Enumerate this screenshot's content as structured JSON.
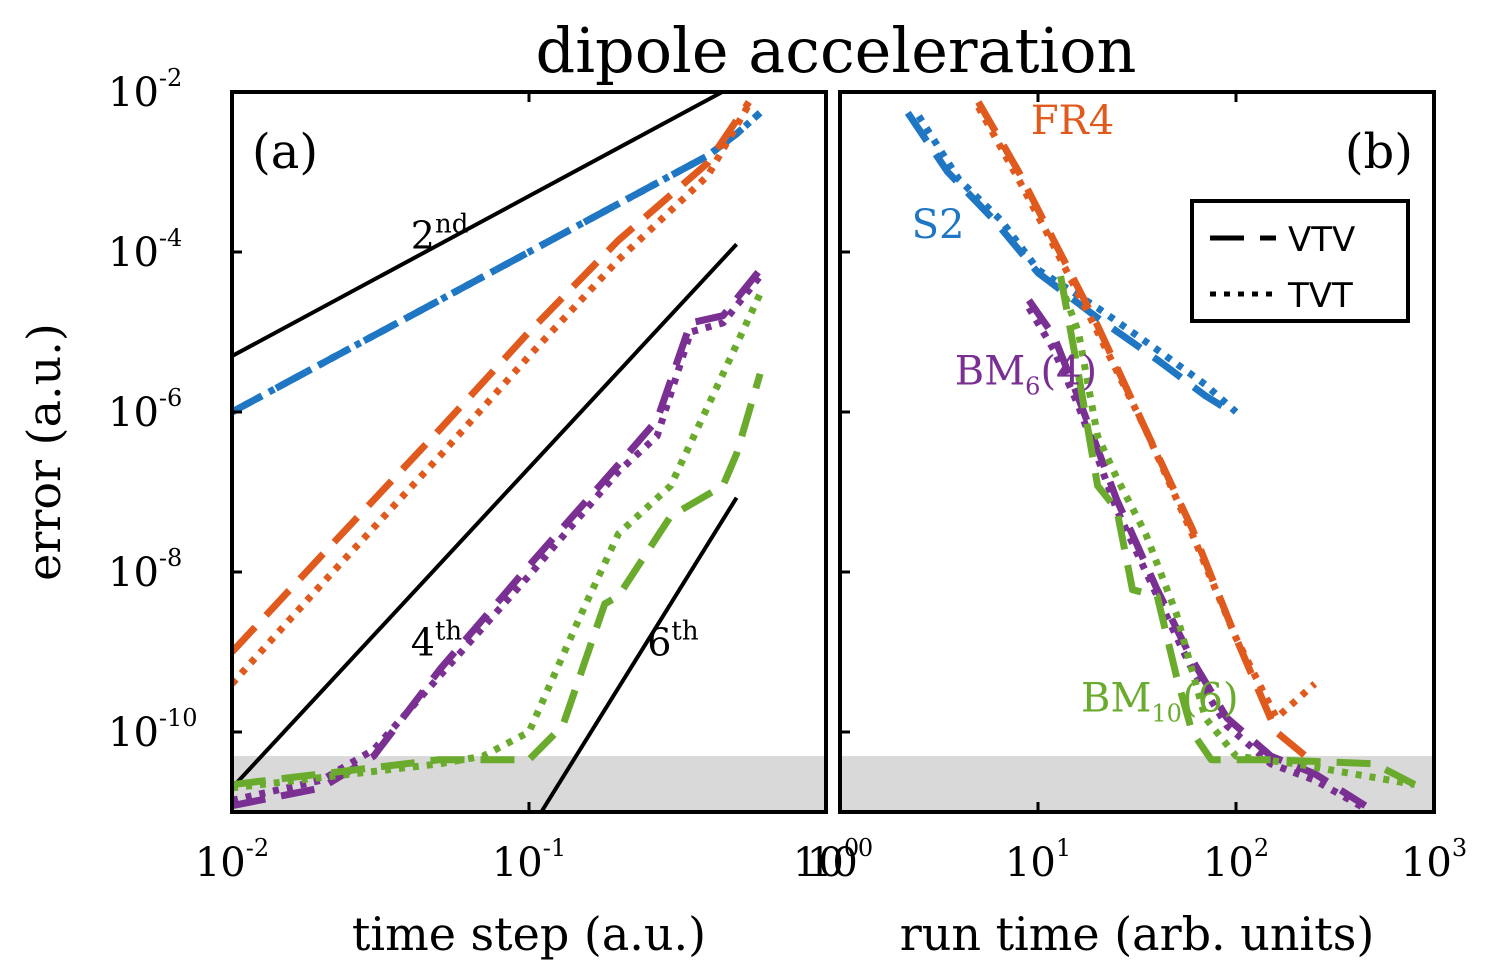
{
  "figure_title": "dipole acceleration",
  "colors": {
    "S2": "#1f77c4",
    "FR4": "#e05a1e",
    "BM6(4)": "#7a2f93",
    "BM10(6)": "#6aab2e",
    "reference": "#000000",
    "shade": "#d9d9d9"
  },
  "legend": {
    "placement": "top-right of panel (b)",
    "entries": [
      {
        "label": "VTV",
        "style": "dashed"
      },
      {
        "label": "TVT",
        "style": "dotted"
      }
    ]
  },
  "chart_data": [
    {
      "type": "line",
      "panel_label": "(a)",
      "xlabel": "time step (a.u.)",
      "ylabel": "error (a.u.)",
      "x_scale": "log",
      "y_scale": "log",
      "xlim": [
        0.01,
        1
      ],
      "ylim": [
        1e-11,
        0.01
      ],
      "x_ticks": [
        {
          "base": "10",
          "exp": "-2"
        },
        {
          "base": "10",
          "exp": "-1"
        },
        {
          "base": "10",
          "exp": "0"
        }
      ],
      "y_ticks": [
        {
          "base": "10",
          "exp": "-2"
        },
        {
          "base": "10",
          "exp": "-4"
        },
        {
          "base": "10",
          "exp": "-6"
        },
        {
          "base": "10",
          "exp": "-8"
        },
        {
          "base": "10",
          "exp": "-10"
        }
      ],
      "grid": false,
      "shaded_band": [
        1e-11,
        5e-11
      ],
      "reference_lines": [
        {
          "order": "2",
          "label_base": "2",
          "label_sup": "nd",
          "x": [
            0.01,
            0.5
          ],
          "y": [
            5e-06,
            0.0125
          ],
          "label_at": [
            0.04,
            0.00011
          ]
        },
        {
          "order": "4",
          "label_base": "4",
          "label_sup": "th",
          "x": [
            0.01,
            0.5
          ],
          "y": [
            2e-11,
            0.000125
          ],
          "label_at": [
            0.04,
            9e-10
          ]
        },
        {
          "order": "6",
          "label_base": "6",
          "label_sup": "th",
          "x": [
            0.11,
            0.5
          ],
          "y": [
            1e-11,
            8.5e-08
          ],
          "label_at": [
            0.25,
            9e-10
          ]
        }
      ],
      "series": [
        {
          "method": "S2",
          "style": "dashed",
          "x": [
            0.01,
            0.02,
            0.05,
            0.1,
            0.2,
            0.4,
            0.5,
            0.6
          ],
          "y": [
            1e-06,
            4e-06,
            2.5e-05,
            0.0001,
            0.0004,
            0.0016,
            0.003,
            0.0055
          ]
        },
        {
          "method": "S2",
          "style": "dotted",
          "x": [
            0.01,
            0.02,
            0.05,
            0.1,
            0.2,
            0.4,
            0.5,
            0.6
          ],
          "y": [
            1e-06,
            4e-06,
            2.5e-05,
            0.0001,
            0.0004,
            0.0016,
            0.003,
            0.0055
          ]
        },
        {
          "method": "FR4",
          "style": "dashed",
          "x": [
            0.01,
            0.02,
            0.05,
            0.1,
            0.2,
            0.4,
            0.55
          ],
          "y": [
            1e-09,
            1.6e-08,
            6e-07,
            1e-05,
            0.00014,
            0.0013,
            0.0075
          ]
        },
        {
          "method": "FR4",
          "style": "dotted",
          "x": [
            0.01,
            0.02,
            0.05,
            0.1,
            0.2,
            0.4,
            0.55
          ],
          "y": [
            4e-10,
            7e-09,
            2.8e-07,
            5e-06,
            8e-05,
            0.0009,
            0.007
          ]
        },
        {
          "method": "BM6(4)",
          "style": "dashed",
          "x": [
            0.01,
            0.02,
            0.03,
            0.05,
            0.1,
            0.2,
            0.27,
            0.35,
            0.45,
            0.6
          ],
          "y": [
            1.2e-11,
            2e-11,
            5e-11,
            6e-10,
            1.2e-08,
            2.2e-07,
            8e-07,
            1.3e-05,
            1.6e-05,
            6e-05
          ]
        },
        {
          "method": "BM6(4)",
          "style": "dotted",
          "x": [
            0.01,
            0.02,
            0.03,
            0.05,
            0.1,
            0.2,
            0.27,
            0.35,
            0.45,
            0.6
          ],
          "y": [
            1.4e-11,
            2.5e-11,
            6e-11,
            5e-10,
            9e-09,
            1.8e-07,
            5e-07,
            1e-05,
            1.3e-05,
            5e-05
          ]
        },
        {
          "method": "BM10(6)",
          "style": "dashed",
          "x": [
            0.01,
            0.05,
            0.1,
            0.13,
            0.18,
            0.2,
            0.3,
            0.45,
            0.5,
            0.6
          ],
          "y": [
            2.2e-11,
            4.5e-11,
            4.5e-11,
            1.2e-10,
            4e-09,
            5e-09,
            5e-08,
            1.2e-07,
            3e-07,
            3e-06
          ]
        },
        {
          "method": "BM10(6)",
          "style": "dotted",
          "x": [
            0.01,
            0.05,
            0.07,
            0.1,
            0.15,
            0.2,
            0.3,
            0.45,
            0.6
          ],
          "y": [
            2e-11,
            4e-11,
            5e-11,
            1e-10,
            3e-09,
            3e-08,
            1.2e-07,
            3e-06,
            3e-05
          ]
        }
      ]
    },
    {
      "type": "line",
      "panel_label": "(b)",
      "xlabel": "run time (arb. units)",
      "ylabel": "",
      "x_scale": "log",
      "y_scale": "log",
      "xlim": [
        1,
        1000
      ],
      "ylim": [
        1e-11,
        0.01
      ],
      "x_ticks": [
        {
          "base": "10",
          "exp": "0"
        },
        {
          "base": "10",
          "exp": "1"
        },
        {
          "base": "10",
          "exp": "2"
        },
        {
          "base": "10",
          "exp": "3"
        }
      ],
      "grid": false,
      "shaded_band": [
        1e-11,
        5e-11
      ],
      "method_labels": [
        {
          "method": "S2",
          "base": "S2",
          "sub": "",
          "tail": "",
          "at": [
            2.3,
            0.00015
          ]
        },
        {
          "method": "FR4",
          "base": "FR4",
          "sub": "",
          "tail": "",
          "at": [
            9.2,
            0.003
          ]
        },
        {
          "method": "BM6(4)",
          "base": "BM",
          "sub": "6",
          "tail": "(4)",
          "at": [
            3.8,
            2.2e-06
          ]
        },
        {
          "method": "BM10(6)",
          "base": "BM",
          "sub": "10",
          "tail": "(6)",
          "at": [
            16.5,
            1.8e-10
          ]
        }
      ],
      "series": [
        {
          "method": "S2",
          "style": "dashed",
          "x": [
            2.2,
            3.5,
            6,
            10,
            20,
            40,
            70,
            95
          ],
          "y": [
            0.0055,
            0.001,
            0.00025,
            5.5e-05,
            1.5e-05,
            4.5e-06,
            1.6e-06,
            1e-06
          ]
        },
        {
          "method": "S2",
          "style": "dotted",
          "x": [
            2.5,
            4,
            6.5,
            10,
            20,
            40,
            70,
            100
          ],
          "y": [
            0.005,
            0.0008,
            0.00025,
            6e-05,
            2e-05,
            6e-06,
            2.2e-06,
            1e-06
          ]
        },
        {
          "method": "FR4",
          "style": "dashed",
          "x": [
            5,
            8,
            12,
            20,
            35,
            60,
            100,
            160,
            250
          ],
          "y": [
            0.0075,
            0.001,
            0.00014,
            1.2e-05,
            6e-07,
            3.5e-08,
            1.5e-09,
            1e-10,
            4e-11
          ]
        },
        {
          "method": "FR4",
          "style": "dotted",
          "x": [
            5,
            8,
            12,
            20,
            35,
            60,
            100,
            160,
            250
          ],
          "y": [
            0.0065,
            0.0008,
            0.00012,
            1e-05,
            6e-07,
            3e-08,
            1.5e-09,
            1.5e-10,
            4e-10
          ]
        },
        {
          "method": "BM6(4)",
          "style": "dashed",
          "x": [
            9,
            12,
            16,
            25,
            40,
            60,
            90,
            150,
            250,
            450
          ],
          "y": [
            2.5e-05,
            9e-06,
            1.5e-06,
            8e-08,
            6e-09,
            8e-10,
            1.5e-10,
            5e-11,
            3e-11,
            1.2e-11
          ]
        },
        {
          "method": "BM6(4)",
          "style": "dotted",
          "x": [
            9,
            12,
            16,
            25,
            40,
            60,
            90,
            150,
            250,
            450
          ],
          "y": [
            2e-05,
            6e-06,
            1.2e-06,
            6e-08,
            5e-09,
            6e-10,
            1.2e-10,
            4e-11,
            2.5e-11,
            1.1e-11
          ]
        },
        {
          "method": "BM10(6)",
          "style": "dashed",
          "x": [
            13,
            16,
            20,
            25,
            30,
            40,
            50,
            60,
            75,
            150,
            500,
            800
          ],
          "y": [
            5e-05,
            3e-06,
            1.2e-07,
            6e-08,
            6e-09,
            5e-09,
            5e-10,
            1e-10,
            4.5e-11,
            4.5e-11,
            4e-11,
            2.2e-11
          ]
        },
        {
          "method": "BM10(6)",
          "style": "dotted",
          "x": [
            13,
            16,
            20,
            25,
            35,
            50,
            70,
            100,
            200,
            800
          ],
          "y": [
            4e-05,
            1e-05,
            5e-07,
            1.5e-07,
            3e-08,
            3e-09,
            1.5e-10,
            5e-11,
            4e-11,
            2.2e-11
          ]
        }
      ]
    }
  ]
}
